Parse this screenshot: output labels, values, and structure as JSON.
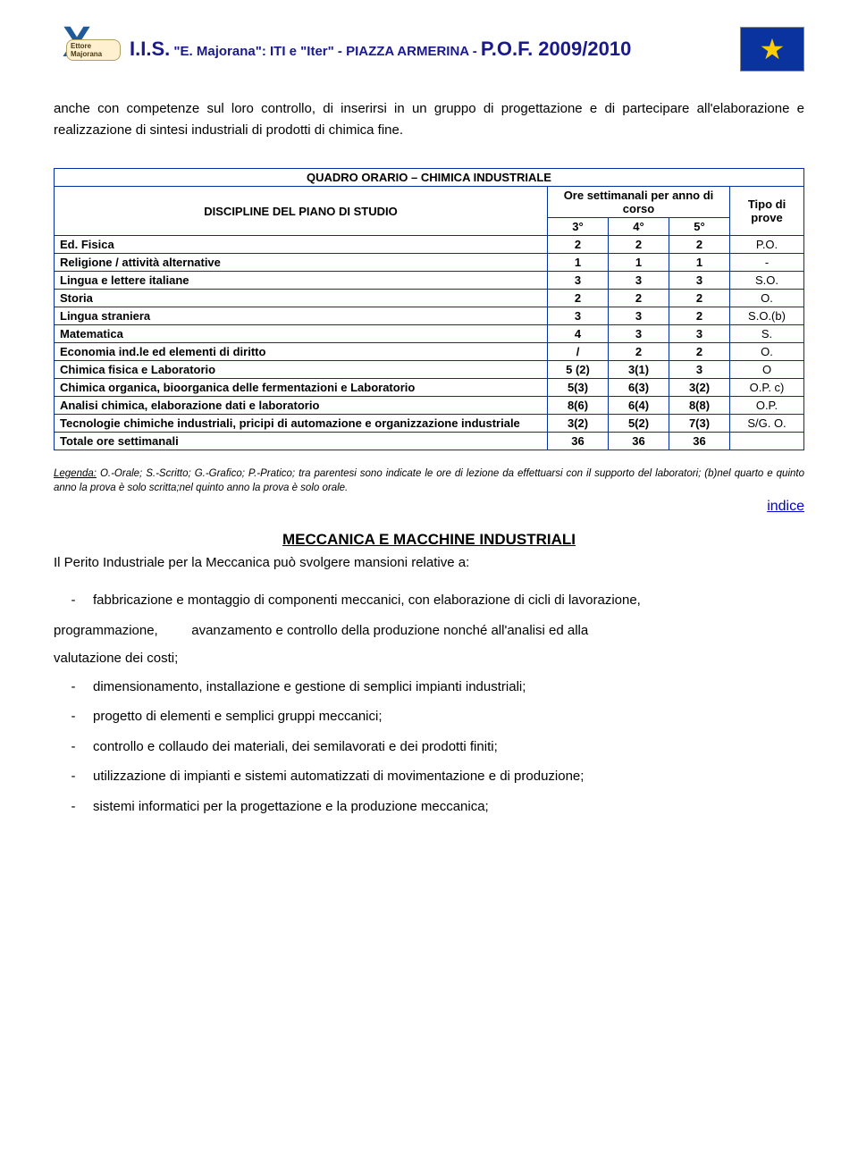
{
  "header": {
    "logo_label": "Ettore Majorana",
    "iis": "I.I.S.",
    "quoted": "\"E. Majorana\": ITI e \"Iter\"",
    "sep": " - PIAZZA ARMERINA - ",
    "pof": "P.O.F. 2009/2010"
  },
  "intro_paragraph": "anche con competenze sul loro controllo, di inserirsi in un gruppo di progettazione e di partecipare all'elaborazione e realizzazione di sintesi industriali di prodotti di chimica fine.",
  "table": {
    "title": "QUADRO ORARIO – CHIMICA INDUSTRIALE",
    "discipline_header": "DISCIPLINE DEL PIANO DI STUDIO",
    "ore_header": "Ore settimanali per anno di corso",
    "tipo_header": "Tipo di prove",
    "year_cols": [
      "3°",
      "4°",
      "5°"
    ],
    "rows": [
      {
        "label": "Ed. Fisica",
        "c": [
          "2",
          "2",
          "2"
        ],
        "tipo": "P.O."
      },
      {
        "label": "Religione / attività alternative",
        "c": [
          "1",
          "1",
          "1"
        ],
        "tipo": "-"
      },
      {
        "label": "Lingua e lettere italiane",
        "c": [
          "3",
          "3",
          "3"
        ],
        "tipo": "S.O."
      },
      {
        "label": "Storia",
        "c": [
          "2",
          "2",
          "2"
        ],
        "tipo": "O."
      },
      {
        "label": "Lingua straniera",
        "c": [
          "3",
          "3",
          "2"
        ],
        "tipo": "S.O.(b)"
      },
      {
        "label": "Matematica",
        "c": [
          "4",
          "3",
          "3"
        ],
        "tipo": "S."
      },
      {
        "label": "Economia ind.le ed elementi di diritto",
        "c": [
          "/",
          "2",
          "2"
        ],
        "tipo": "O."
      },
      {
        "label": "Chimica fisica e Laboratorio",
        "c": [
          "5 (2)",
          "3(1)",
          "3"
        ],
        "tipo": "O"
      },
      {
        "label": "Chimica organica, bioorganica delle fermentazioni e Laboratorio",
        "c": [
          "5(3)",
          "6(3)",
          "3(2)"
        ],
        "tipo": "O.P. c)"
      },
      {
        "label": "Analisi chimica, elaborazione dati e laboratorio",
        "c": [
          "8(6)",
          "6(4)",
          "8(8)"
        ],
        "tipo": "O.P."
      },
      {
        "label": "Tecnologie chimiche industriali, pricipi di automazione e organizzazione industriale",
        "c": [
          "3(2)",
          "5(2)",
          "7(3)"
        ],
        "tipo": "S/G. O."
      },
      {
        "label": "Totale ore settimanali",
        "c": [
          "36",
          "36",
          "36"
        ],
        "tipo": ""
      }
    ]
  },
  "legend": {
    "prefix": "Legenda:",
    "body": " O.-Orale; S.-Scritto; G.-Grafico; P.-Pratico; tra parentesi  sono indicate le ore di lezione da effettuarsi con il supporto del laboratori; (b)nel quarto e quinto anno la prova è solo scritta;nel quinto anno la prova è solo orale."
  },
  "indice_label": "indice",
  "section2": {
    "title": "MECCANICA E MACCHINE INDUSTRIALI",
    "intro": "Il Perito Industriale per la Meccanica può  svolgere mansioni relative a:",
    "bullets": [
      "fabbricazione e montaggio di componenti meccanici, con elaborazione di cicli di lavorazione,",
      "dimensionamento, installazione e gestione di semplici impianti industriali;",
      "progetto di elementi e semplici gruppi  meccanici;",
      "controllo e collaudo dei materiali, dei semilavorati e dei prodotti finiti;",
      "utilizzazione di impianti e sistemi automatizzati di movimentazione e di produzione;",
      "sistemi informatici per la progettazione e la produzione meccanica;"
    ],
    "continuation_lines": [
      "programmazione,         avanzamento e controllo della produzione nonché all'analisi ed alla",
      "valutazione dei costi;"
    ]
  },
  "colors": {
    "border": "#0030a0",
    "title_text": "#1a1a8a",
    "link": "#0000cc",
    "eu_blue": "#0a33a0",
    "eu_gold": "#ffcc00"
  }
}
